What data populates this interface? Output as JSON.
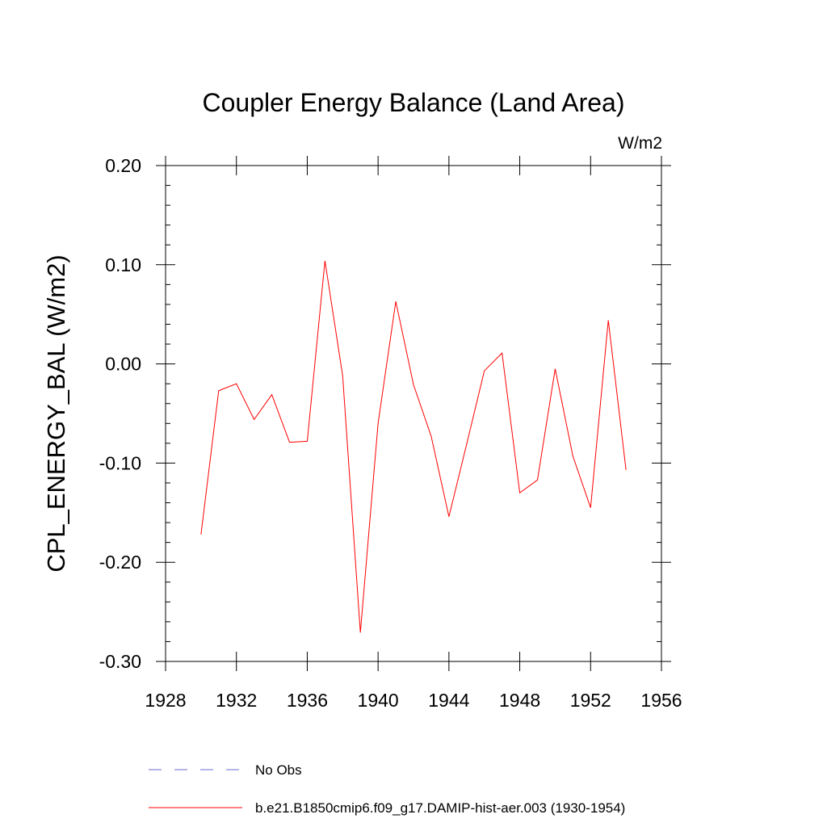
{
  "chart_data": {
    "type": "line",
    "title": "Coupler Energy Balance (Land Area)",
    "units_label": "W/m2",
    "xlabel": "",
    "ylabel": "CPL_ENERGY_BAL  (W/m2)",
    "xlim": [
      1928,
      1956
    ],
    "ylim": [
      -0.3,
      0.2
    ],
    "x_ticks": [
      1928,
      1932,
      1936,
      1940,
      1944,
      1948,
      1952,
      1956
    ],
    "x_tick_labels": [
      "1928",
      "1932",
      "1936",
      "1940",
      "1944",
      "1948",
      "1952",
      "1956"
    ],
    "y_ticks": [
      -0.3,
      -0.2,
      -0.1,
      0.0,
      0.1,
      0.2
    ],
    "y_tick_labels": [
      "-0.30",
      "-0.20",
      "-0.10",
      "0.00",
      "0.10",
      "0.20"
    ],
    "grid": false,
    "legend_position": "bottom",
    "series": [
      {
        "name": "No Obs",
        "color": "#6b6bd6",
        "style": "dashed",
        "x": [],
        "y": []
      },
      {
        "name": "b.e21.B1850cmip6.f09_g17.DAMIP-hist-aer.003 (1930-1954)",
        "color": "#ff0000",
        "style": "solid",
        "x": [
          1930,
          1931,
          1932,
          1933,
          1934,
          1935,
          1936,
          1937,
          1938,
          1939,
          1940,
          1941,
          1942,
          1943,
          1944,
          1945,
          1946,
          1947,
          1948,
          1949,
          1950,
          1951,
          1952,
          1953,
          1954
        ],
        "y": [
          -0.172,
          -0.027,
          -0.02,
          -0.056,
          -0.031,
          -0.079,
          -0.078,
          0.104,
          -0.012,
          -0.271,
          -0.06,
          0.063,
          -0.021,
          -0.073,
          -0.154,
          -0.081,
          -0.007,
          0.011,
          -0.13,
          -0.117,
          -0.005,
          -0.093,
          -0.145,
          0.044,
          -0.107
        ]
      }
    ]
  }
}
